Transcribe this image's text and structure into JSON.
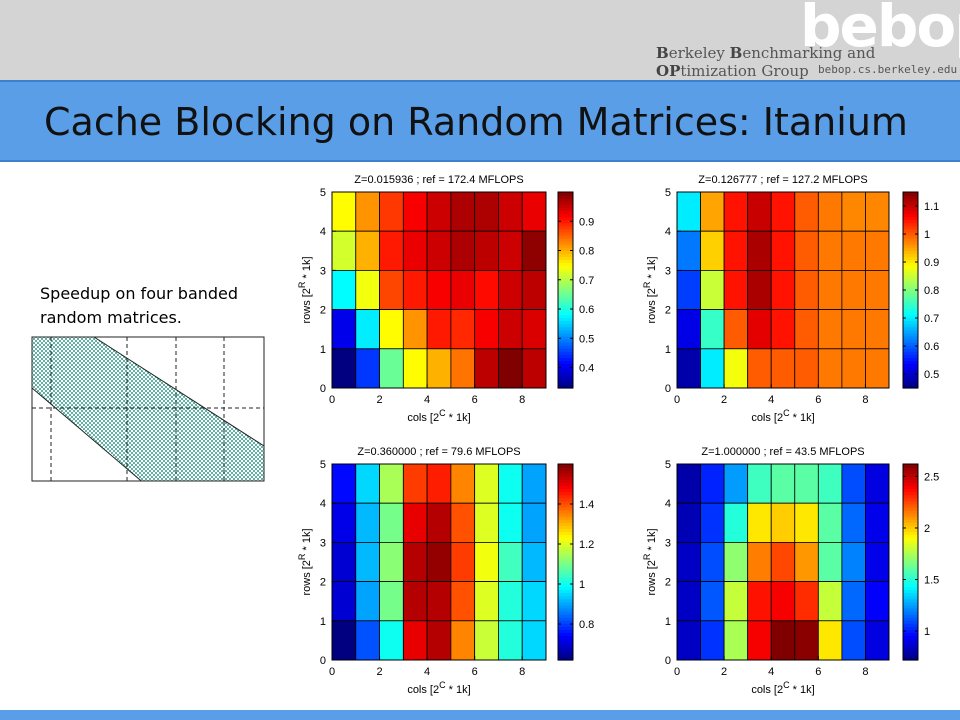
{
  "header": {
    "logo_text": "bebop",
    "group_name_b": "B",
    "group_name_rest1": "erkeley ",
    "group_name_b2": "B",
    "group_name_rest2": "enchmarking and ",
    "group_name_op": "OP",
    "group_name_rest3": "timization Group",
    "group_url": "bebop.cs.berkeley.edu"
  },
  "slide": {
    "title": "Cache Blocking on Random Matrices: Itanium",
    "caption_line1": "Speedup on four banded",
    "caption_line2": "random matrices."
  },
  "colors": {
    "title_band": "#5b9ee8",
    "header_band": "#d4d4d4"
  },
  "chart_data": [
    {
      "type": "heatmap",
      "title": "Z=0.015936 ; ref = 172.4 MFLOPS",
      "xlabel": "cols [2^C * 1k]",
      "ylabel": "rows [2^R * 1k]",
      "x_ticks": [
        0,
        2,
        4,
        6,
        8
      ],
      "y_ticks": [
        0,
        1,
        2,
        3,
        4,
        5
      ],
      "xlim": [
        0,
        9
      ],
      "ylim": [
        0,
        5
      ],
      "clim": [
        0.33,
        1.0
      ],
      "colorbar_ticks": [
        0.4,
        0.5,
        0.6,
        0.7,
        0.8,
        0.9
      ],
      "rows": [
        [
          0.75,
          0.82,
          0.88,
          0.92,
          0.95,
          0.97,
          0.97,
          0.95,
          0.93
        ],
        [
          0.72,
          0.8,
          0.9,
          0.93,
          0.95,
          0.97,
          0.96,
          0.95,
          0.99
        ],
        [
          0.58,
          0.74,
          0.87,
          0.9,
          0.92,
          0.93,
          0.91,
          0.95,
          0.96
        ],
        [
          0.4,
          0.57,
          0.75,
          0.82,
          0.9,
          0.89,
          0.92,
          0.95,
          0.94
        ],
        [
          0.33,
          0.45,
          0.65,
          0.75,
          0.8,
          0.84,
          0.96,
          1.0,
          0.96
        ]
      ]
    },
    {
      "type": "heatmap",
      "title": "Z=0.126777 ; ref = 127.2 MFLOPS",
      "xlabel": "cols [2^C * 1k]",
      "ylabel": "rows [2^R * 1k]",
      "x_ticks": [
        0,
        2,
        4,
        6,
        8
      ],
      "y_ticks": [
        0,
        1,
        2,
        3,
        4,
        5
      ],
      "xlim": [
        0,
        9
      ],
      "ylim": [
        0,
        5
      ],
      "clim": [
        0.45,
        1.15
      ],
      "colorbar_ticks": [
        0.5,
        0.6,
        0.7,
        0.8,
        0.9,
        1,
        1.1
      ],
      "rows": [
        [
          0.7,
          0.95,
          1.05,
          1.1,
          1.05,
          1.0,
          0.98,
          0.97,
          0.97
        ],
        [
          0.62,
          0.92,
          1.05,
          1.12,
          1.05,
          1.0,
          0.98,
          0.98,
          0.98
        ],
        [
          0.58,
          0.85,
          1.05,
          1.12,
          1.05,
          1.0,
          0.98,
          0.98,
          0.98
        ],
        [
          0.52,
          0.75,
          1.0,
          1.08,
          1.05,
          1.0,
          0.98,
          0.98,
          0.98
        ],
        [
          0.48,
          0.7,
          0.88,
          1.0,
          1.0,
          1.0,
          0.98,
          0.98,
          0.98
        ]
      ]
    },
    {
      "type": "heatmap",
      "title": "Z=0.360000 ; ref = 79.6 MFLOPS",
      "xlabel": "cols [2^C * 1k]",
      "ylabel": "rows [2^R * 1k]",
      "x_ticks": [
        0,
        2,
        4,
        6,
        8
      ],
      "y_ticks": [
        0,
        1,
        2,
        3,
        4,
        5
      ],
      "xlim": [
        0,
        9
      ],
      "ylim": [
        0,
        5
      ],
      "clim": [
        0.62,
        1.6
      ],
      "colorbar_ticks": [
        0.8,
        1,
        1.2,
        1.4
      ],
      "rows": [
        [
          0.75,
          0.95,
          1.15,
          1.42,
          1.45,
          1.35,
          1.2,
          1.0,
          0.9
        ],
        [
          0.72,
          0.92,
          1.1,
          1.5,
          1.55,
          1.4,
          1.2,
          1.0,
          0.9
        ],
        [
          0.7,
          0.92,
          1.12,
          1.55,
          1.58,
          1.42,
          1.22,
          1.05,
          0.92
        ],
        [
          0.7,
          0.9,
          1.1,
          1.55,
          1.55,
          1.4,
          1.2,
          1.02,
          0.95
        ],
        [
          0.62,
          0.82,
          1.0,
          1.5,
          1.55,
          1.35,
          1.18,
          1.02,
          0.95
        ]
      ]
    },
    {
      "type": "heatmap",
      "title": "Z=1.000000 ; ref = 43.5 MFLOPS",
      "xlabel": "cols [2^C * 1k]",
      "ylabel": "rows [2^R * 1k]",
      "x_ticks": [
        0,
        2,
        4,
        6,
        8
      ],
      "y_ticks": [
        0,
        1,
        2,
        3,
        4,
        5
      ],
      "xlim": [
        0,
        9
      ],
      "ylim": [
        0,
        5
      ],
      "clim": [
        0.72,
        2.62
      ],
      "colorbar_ticks": [
        1,
        1.5,
        2,
        2.5
      ],
      "rows": [
        [
          0.8,
          1.02,
          1.25,
          1.55,
          1.6,
          1.6,
          1.55,
          1.1,
          0.9
        ],
        [
          0.82,
          1.05,
          1.5,
          1.95,
          2.0,
          1.95,
          1.6,
          1.15,
          0.92
        ],
        [
          0.85,
          1.1,
          1.7,
          2.15,
          2.25,
          2.1,
          1.6,
          1.2,
          0.92
        ],
        [
          0.85,
          1.12,
          1.8,
          2.35,
          2.4,
          2.3,
          1.8,
          1.15,
          0.95
        ],
        [
          0.85,
          1.05,
          1.75,
          2.4,
          2.62,
          2.6,
          1.95,
          1.1,
          0.9
        ]
      ]
    }
  ],
  "matrix_diagram": {
    "type": "banded-matrix-illustration"
  }
}
